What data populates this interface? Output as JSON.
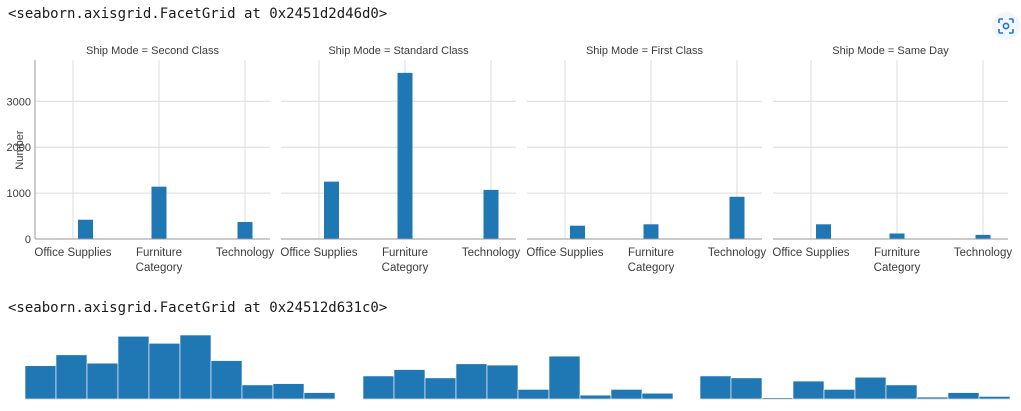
{
  "outputs": {
    "repr1": "<seaborn.axisgrid.FacetGrid at 0x2451d2d46d0>",
    "repr2": "<seaborn.axisgrid.FacetGrid at 0x24512d631c0>"
  },
  "toolbar": {
    "lens_icon": "lens-icon"
  },
  "colors": {
    "bar": "#1f77b4",
    "grid": "#dcdcdc",
    "axis": "#9a9a9a",
    "text": "#3b3b3b"
  },
  "chart_data": [
    {
      "type": "bar",
      "facet_var": "Ship Mode",
      "facet_titles": [
        "Ship Mode = Second Class",
        "Ship Mode = Standard Class",
        "Ship Mode = First Class",
        "Ship Mode = Same Day"
      ],
      "categories": [
        "Office Supplies",
        "Furniture",
        "Technology"
      ],
      "xlabel": "Category",
      "ylabel": "Number",
      "ylim": [
        0,
        3900
      ],
      "yticks": [
        0,
        1000,
        2000,
        3000
      ],
      "grid": true,
      "panels": [
        {
          "values": [
            420,
            1140,
            370
          ]
        },
        {
          "values": [
            1250,
            3620,
            1070
          ]
        },
        {
          "values": [
            290,
            320,
            920
          ]
        },
        {
          "values": [
            320,
            120,
            90
          ]
        }
      ]
    },
    {
      "type": "bar",
      "panels": [
        {
          "values": [
            0.52,
            0.69,
            0.56,
            0.98,
            0.87,
            1.0,
            0.6,
            0.22,
            0.24,
            0.1
          ]
        },
        {
          "values": [
            0.36,
            0.46,
            0.33,
            0.55,
            0.53,
            0.15,
            0.67,
            0.06,
            0.15,
            0.09
          ]
        },
        {
          "values": [
            0.36,
            0.33,
            0.02,
            0.28,
            0.15,
            0.34,
            0.22,
            0.03,
            0.1,
            0.04
          ]
        }
      ]
    }
  ]
}
